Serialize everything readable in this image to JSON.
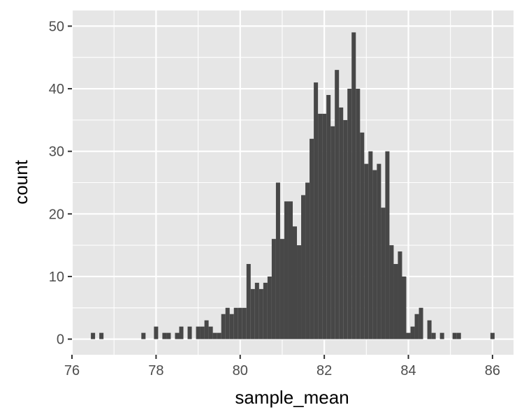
{
  "chart_data": {
    "type": "bar",
    "subtype": "histogram",
    "xlabel": "sample_mean",
    "ylabel": "count",
    "xlim": [
      76,
      86.5
    ],
    "ylim": [
      -2.5,
      52.5
    ],
    "x_ticks": [
      76,
      78,
      80,
      82,
      84,
      86
    ],
    "y_ticks": [
      0,
      10,
      20,
      30,
      40,
      50
    ],
    "grid": true,
    "colors": {
      "bar": "#474747",
      "panel": "#e6e6e6",
      "grid": "#ffffff"
    },
    "bin_width": 0.1,
    "bins": [
      {
        "x": 76.5,
        "count": 1
      },
      {
        "x": 76.7,
        "count": 1
      },
      {
        "x": 77.7,
        "count": 1
      },
      {
        "x": 78.0,
        "count": 2
      },
      {
        "x": 78.2,
        "count": 1
      },
      {
        "x": 78.3,
        "count": 1
      },
      {
        "x": 78.5,
        "count": 1
      },
      {
        "x": 78.6,
        "count": 2
      },
      {
        "x": 78.8,
        "count": 2
      },
      {
        "x": 79.0,
        "count": 2
      },
      {
        "x": 79.1,
        "count": 2
      },
      {
        "x": 79.2,
        "count": 3
      },
      {
        "x": 79.3,
        "count": 2
      },
      {
        "x": 79.4,
        "count": 1
      },
      {
        "x": 79.5,
        "count": 1
      },
      {
        "x": 79.6,
        "count": 4
      },
      {
        "x": 79.7,
        "count": 5
      },
      {
        "x": 79.8,
        "count": 4
      },
      {
        "x": 79.9,
        "count": 5
      },
      {
        "x": 80.0,
        "count": 5
      },
      {
        "x": 80.1,
        "count": 5
      },
      {
        "x": 80.2,
        "count": 12
      },
      {
        "x": 80.3,
        "count": 8
      },
      {
        "x": 80.4,
        "count": 9
      },
      {
        "x": 80.5,
        "count": 8
      },
      {
        "x": 80.6,
        "count": 9
      },
      {
        "x": 80.7,
        "count": 10
      },
      {
        "x": 80.8,
        "count": 16
      },
      {
        "x": 80.9,
        "count": 25
      },
      {
        "x": 81.0,
        "count": 16
      },
      {
        "x": 81.1,
        "count": 22
      },
      {
        "x": 81.2,
        "count": 22
      },
      {
        "x": 81.3,
        "count": 18
      },
      {
        "x": 81.4,
        "count": 15
      },
      {
        "x": 81.5,
        "count": 23
      },
      {
        "x": 81.6,
        "count": 25
      },
      {
        "x": 81.7,
        "count": 32
      },
      {
        "x": 81.8,
        "count": 41
      },
      {
        "x": 81.9,
        "count": 36
      },
      {
        "x": 82.0,
        "count": 36
      },
      {
        "x": 82.1,
        "count": 39
      },
      {
        "x": 82.2,
        "count": 34
      },
      {
        "x": 82.3,
        "count": 43
      },
      {
        "x": 82.4,
        "count": 37
      },
      {
        "x": 82.5,
        "count": 35
      },
      {
        "x": 82.6,
        "count": 40
      },
      {
        "x": 82.7,
        "count": 49
      },
      {
        "x": 82.8,
        "count": 40
      },
      {
        "x": 82.9,
        "count": 33
      },
      {
        "x": 83.0,
        "count": 28
      },
      {
        "x": 83.1,
        "count": 30
      },
      {
        "x": 83.2,
        "count": 27
      },
      {
        "x": 83.3,
        "count": 28
      },
      {
        "x": 83.4,
        "count": 21
      },
      {
        "x": 83.5,
        "count": 30
      },
      {
        "x": 83.6,
        "count": 15
      },
      {
        "x": 83.7,
        "count": 12
      },
      {
        "x": 83.8,
        "count": 14
      },
      {
        "x": 83.9,
        "count": 10
      },
      {
        "x": 84.0,
        "count": 1
      },
      {
        "x": 84.1,
        "count": 2
      },
      {
        "x": 84.2,
        "count": 4
      },
      {
        "x": 84.3,
        "count": 5
      },
      {
        "x": 84.5,
        "count": 3
      },
      {
        "x": 84.6,
        "count": 1
      },
      {
        "x": 84.8,
        "count": 1
      },
      {
        "x": 85.1,
        "count": 1
      },
      {
        "x": 85.2,
        "count": 1
      },
      {
        "x": 86.0,
        "count": 1
      }
    ]
  }
}
